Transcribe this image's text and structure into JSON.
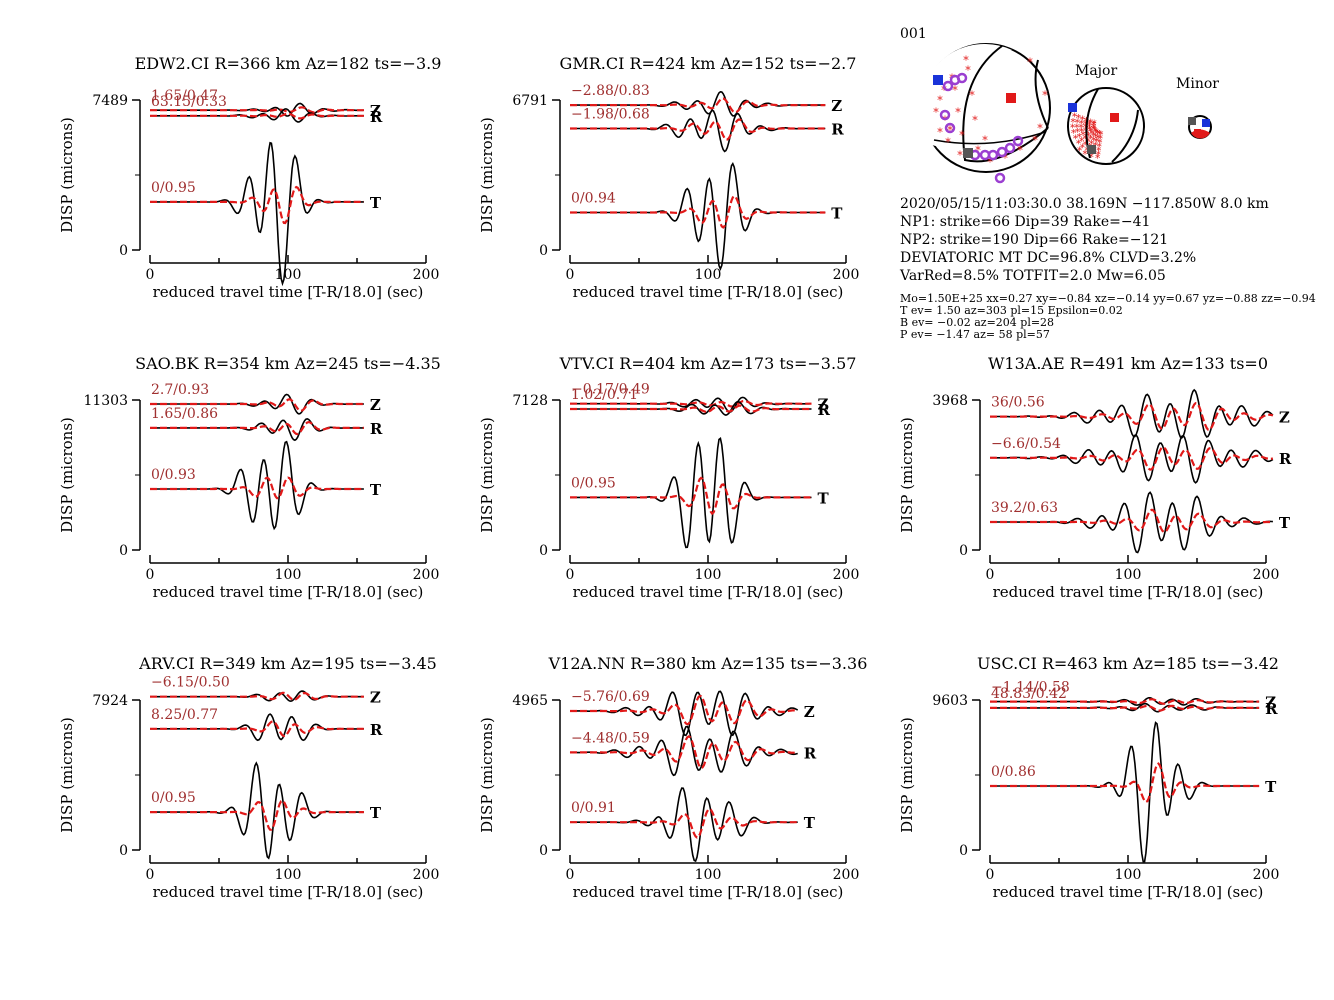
{
  "event_id": "001",
  "mechanism": {
    "labels": {
      "major": "Major",
      "minor": "Minor"
    },
    "colors": {
      "tension": "#e11919",
      "pressure": "#1a33d9",
      "station": "#9b3fd1",
      "null": "#555555"
    }
  },
  "event_info": {
    "lines": [
      "2020/05/15/11:03:30.0 38.169N −117.850W 8.0 km",
      "NP1: strike=66 Dip=39 Rake=−41",
      "NP2: strike=190 Dip=66 Rake=−121",
      "DEVIATORIC MT DC=96.8% CLVD=3.2%",
      "VarRed=8.5% TOTFIT=2.0 Mw=6.05"
    ],
    "small_lines": [
      "Mo=1.50E+25 xx=0.27 xy=−0.84 xz=−0.14 yy=0.67 yz=−0.88 zz=−0.94",
      "T ev=  1.50 az=303 pl=15 Epsilon=0.02",
      "B ev= −0.02 az=204 pl=28",
      "P ev= −1.47 az= 58 pl=57"
    ]
  },
  "chart_data": [
    {
      "type": "line",
      "title": "EDW2.CI R=366 km Az=182 ts=−3.9",
      "xlabel": "reduced travel time [T-R/18.0] (sec)",
      "ylabel": "DISP (microns)",
      "xlim": [
        0,
        200
      ],
      "xticks": [
        0,
        100,
        200
      ],
      "ylim": [
        0,
        7489
      ],
      "yticks": [
        0,
        7489
      ],
      "series": [
        {
          "name": "Z",
          "label": "1.65/0.47",
          "baseline": 6980,
          "span": [
            0,
            155
          ],
          "amp_data": 280,
          "amp_syn": 120,
          "peak": 105,
          "width": 35
        },
        {
          "name": "R",
          "label": "63.15/0.33",
          "baseline": 6700,
          "span": [
            0,
            155
          ],
          "amp_data": 300,
          "amp_syn": 120,
          "peak": 98,
          "width": 35
        },
        {
          "name": "T",
          "label": "0/0.95",
          "baseline": 2400,
          "span": [
            0,
            155
          ],
          "amp_data": 3800,
          "amp_syn": 1200,
          "peak": 90,
          "width": 28
        }
      ]
    },
    {
      "type": "line",
      "title": "GMR.CI R=424 km Az=152 ts=−2.7",
      "xlabel": "reduced travel time [T-R/18.0] (sec)",
      "ylabel": "DISP (microns)",
      "xlim": [
        0,
        200
      ],
      "xticks": [
        0,
        100,
        200
      ],
      "ylim": [
        0,
        6791
      ],
      "yticks": [
        0,
        6791
      ],
      "series": [
        {
          "name": "Z",
          "label": "−2.88/0.83",
          "baseline": 6560,
          "span": [
            0,
            185
          ],
          "amp_data": 500,
          "amp_syn": 300,
          "peak": 108,
          "width": 40
        },
        {
          "name": "R",
          "label": "−1.98/0.68",
          "baseline": 5500,
          "span": [
            0,
            185
          ],
          "amp_data": 900,
          "amp_syn": 500,
          "peak": 105,
          "width": 40
        },
        {
          "name": "T",
          "label": "0/0.94",
          "baseline": 1700,
          "span": [
            0,
            185
          ],
          "amp_data": 2700,
          "amp_syn": 1000,
          "peak": 105,
          "width": 30
        }
      ]
    },
    {
      "type": "line",
      "title": "SAO.BK R=354 km Az=245 ts=−4.35",
      "xlabel": "reduced travel time [T-R/18.0] (sec)",
      "ylabel": "DISP (microns)",
      "xlim": [
        0,
        200
      ],
      "xticks": [
        0,
        100,
        200
      ],
      "ylim": [
        0,
        11303
      ],
      "yticks": [
        0,
        11303
      ],
      "series": [
        {
          "name": "Z",
          "label": "2.7/0.93",
          "baseline": 11000,
          "span": [
            0,
            155
          ],
          "amp_data": 700,
          "amp_syn": 500,
          "peak": 100,
          "width": 30
        },
        {
          "name": "R",
          "label": "1.65/0.86",
          "baseline": 9200,
          "span": [
            0,
            155
          ],
          "amp_data": 900,
          "amp_syn": 600,
          "peak": 100,
          "width": 30
        },
        {
          "name": "T",
          "label": "0/0.93",
          "baseline": 4600,
          "span": [
            0,
            155
          ],
          "amp_data": 4200,
          "amp_syn": 1300,
          "peak": 88,
          "width": 30
        }
      ]
    },
    {
      "type": "line",
      "title": "VTV.CI R=404 km Az=173 ts=−3.57",
      "xlabel": "reduced travel time [T-R/18.0] (sec)",
      "ylabel": "DISP (microns)",
      "xlim": [
        0,
        200
      ],
      "xticks": [
        0,
        100,
        200
      ],
      "ylim": [
        0,
        7128
      ],
      "yticks": [
        0,
        7128
      ],
      "series": [
        {
          "name": "Z",
          "label": "−0.17/0.49",
          "baseline": 6950,
          "span": [
            0,
            175
          ],
          "amp_data": 350,
          "amp_syn": 150,
          "peak": 110,
          "width": 40
        },
        {
          "name": "R",
          "label": "1.02/0.71",
          "baseline": 6700,
          "span": [
            0,
            175
          ],
          "amp_data": 350,
          "amp_syn": 200,
          "peak": 110,
          "width": 40
        },
        {
          "name": "T",
          "label": "0/0.95",
          "baseline": 2500,
          "span": [
            0,
            175
          ],
          "amp_data": 3800,
          "amp_syn": 1200,
          "peak": 100,
          "width": 30
        }
      ]
    },
    {
      "type": "line",
      "title": "W13A.AE R=491 km Az=133 ts=0",
      "xlabel": "reduced travel time [T-R/18.0] (sec)",
      "ylabel": "DISP (microns)",
      "xlim": [
        0,
        200
      ],
      "xticks": [
        0,
        100,
        200
      ],
      "ylim": [
        0,
        3968
      ],
      "yticks": [
        0,
        3968
      ],
      "series": [
        {
          "name": "Z",
          "label": "36/0.56",
          "baseline": 3530,
          "span": [
            0,
            205
          ],
          "amp_data": 600,
          "amp_syn": 350,
          "peak": 135,
          "width": 80
        },
        {
          "name": "R",
          "label": "−6.6/0.54",
          "baseline": 2440,
          "span": [
            0,
            205
          ],
          "amp_data": 600,
          "amp_syn": 300,
          "peak": 130,
          "width": 80
        },
        {
          "name": "T",
          "label": "39.2/0.63",
          "baseline": 740,
          "span": [
            0,
            205
          ],
          "amp_data": 800,
          "amp_syn": 300,
          "peak": 125,
          "width": 60
        }
      ]
    },
    {
      "type": "line",
      "title": "ARV.CI R=349 km Az=195 ts=−3.45",
      "xlabel": "reduced travel time [T-R/18.0] (sec)",
      "ylabel": "DISP (microns)",
      "xlim": [
        0,
        200
      ],
      "xticks": [
        0,
        100,
        200
      ],
      "ylim": [
        0,
        7924
      ],
      "yticks": [
        0,
        7924
      ],
      "series": [
        {
          "name": "Z",
          "label": "−6.15/0.50",
          "baseline": 8100,
          "span": [
            0,
            155
          ],
          "amp_data": 350,
          "amp_syn": 300,
          "peak": 100,
          "width": 30
        },
        {
          "name": "R",
          "label": "8.25/0.77",
          "baseline": 6400,
          "span": [
            0,
            155
          ],
          "amp_data": 1000,
          "amp_syn": 500,
          "peak": 95,
          "width": 30
        },
        {
          "name": "T",
          "label": "0/0.95",
          "baseline": 2000,
          "span": [
            0,
            155
          ],
          "amp_data": 2900,
          "amp_syn": 900,
          "peak": 88,
          "width": 30
        }
      ]
    },
    {
      "type": "line",
      "title": "V12A.NN R=380 km Az=135 ts=−3.36",
      "xlabel": "reduced travel time [T-R/18.0] (sec)",
      "ylabel": "DISP (microns)",
      "xlim": [
        0,
        200
      ],
      "xticks": [
        0,
        100,
        200
      ],
      "ylim": [
        0,
        4965
      ],
      "yticks": [
        0,
        4965
      ],
      "series": [
        {
          "name": "Z",
          "label": "−5.76/0.69",
          "baseline": 4600,
          "span": [
            0,
            165
          ],
          "amp_data": 800,
          "amp_syn": 500,
          "peak": 100,
          "width": 60
        },
        {
          "name": "R",
          "label": "−4.48/0.59",
          "baseline": 3230,
          "span": [
            0,
            165
          ],
          "amp_data": 800,
          "amp_syn": 500,
          "peak": 95,
          "width": 60
        },
        {
          "name": "T",
          "label": "0/0.91",
          "baseline": 920,
          "span": [
            0,
            165
          ],
          "amp_data": 1200,
          "amp_syn": 450,
          "peak": 95,
          "width": 40
        }
      ]
    },
    {
      "type": "line",
      "title": "USC.CI R=463 km Az=185 ts=−3.42",
      "xlabel": "reduced travel time [T-R/18.0] (sec)",
      "ylabel": "DISP (microns)",
      "xlim": [
        0,
        200
      ],
      "xticks": [
        0,
        100,
        200
      ],
      "ylim": [
        0,
        9603
      ],
      "yticks": [
        0,
        9603
      ],
      "series": [
        {
          "name": "Z",
          "label": "−1.14/0.58",
          "baseline": 9500,
          "span": [
            0,
            195
          ],
          "amp_data": 250,
          "amp_syn": 150,
          "peak": 125,
          "width": 50
        },
        {
          "name": "R",
          "label": "48.83/0.42",
          "baseline": 9100,
          "span": [
            0,
            195
          ],
          "amp_data": 250,
          "amp_syn": 150,
          "peak": 125,
          "width": 50
        },
        {
          "name": "T",
          "label": "0/0.86",
          "baseline": 4100,
          "span": [
            0,
            195
          ],
          "amp_data": 4400,
          "amp_syn": 1200,
          "peak": 118,
          "width": 30
        }
      ]
    }
  ]
}
